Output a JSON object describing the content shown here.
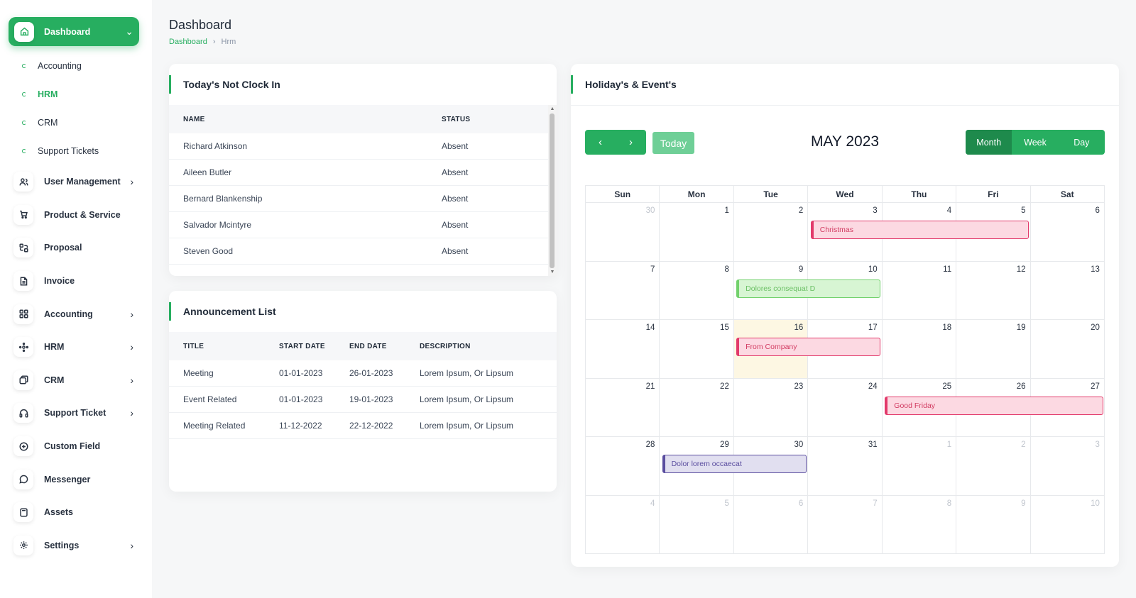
{
  "sidebar": {
    "dashboard_label": "Dashboard",
    "sub_items": [
      {
        "label": "Accounting",
        "active": false
      },
      {
        "label": "HRM",
        "active": true
      },
      {
        "label": "CRM",
        "active": false
      },
      {
        "label": "Support Tickets",
        "active": false
      }
    ],
    "items": [
      {
        "label": "User Management",
        "icon": "users-icon",
        "chevron": true
      },
      {
        "label": "Product & Service",
        "icon": "cart-icon",
        "chevron": false
      },
      {
        "label": "Proposal",
        "icon": "proposal-icon",
        "chevron": false
      },
      {
        "label": "Invoice",
        "icon": "invoice-icon",
        "chevron": false
      },
      {
        "label": "Accounting",
        "icon": "grid-icon",
        "chevron": true
      },
      {
        "label": "HRM",
        "icon": "hrm-icon",
        "chevron": true
      },
      {
        "label": "CRM",
        "icon": "crm-icon",
        "chevron": true
      },
      {
        "label": "Support Ticket",
        "icon": "headphones-icon",
        "chevron": true
      },
      {
        "label": "Custom Field",
        "icon": "plus-circle-icon",
        "chevron": false
      },
      {
        "label": "Messenger",
        "icon": "message-icon",
        "chevron": false
      },
      {
        "label": "Assets",
        "icon": "calculator-icon",
        "chevron": false
      },
      {
        "label": "Settings",
        "icon": "gear-icon",
        "chevron": true
      }
    ]
  },
  "header": {
    "title": "Dashboard",
    "breadcrumb": [
      "Dashboard",
      "Hrm"
    ]
  },
  "clock_in": {
    "title": "Today's Not Clock In",
    "columns": [
      "NAME",
      "STATUS"
    ],
    "rows": [
      {
        "name": "Richard Atkinson",
        "status": "Absent"
      },
      {
        "name": "Aileen Butler",
        "status": "Absent"
      },
      {
        "name": "Bernard Blankenship",
        "status": "Absent"
      },
      {
        "name": "Salvador Mcintyre",
        "status": "Absent"
      },
      {
        "name": "Steven Good",
        "status": "Absent"
      }
    ]
  },
  "announcements": {
    "title": "Announcement List",
    "columns": [
      "TITLE",
      "START DATE",
      "END DATE",
      "DESCRIPTION"
    ],
    "rows": [
      {
        "title": "Meeting",
        "start": "01-01-2023",
        "end": "26-01-2023",
        "description": "Lorem Ipsum, Or Lipsum"
      },
      {
        "title": "Event Related",
        "start": "01-01-2023",
        "end": "19-01-2023",
        "description": "Lorem Ipsum, Or Lipsum"
      },
      {
        "title": "Meeting Related",
        "start": "11-12-2022",
        "end": "22-12-2022",
        "description": "Lorem Ipsum, Or Lipsum"
      }
    ]
  },
  "calendar": {
    "card_title": "Holiday's & Event's",
    "today_label": "Today",
    "month_title": "MAY 2023",
    "views": [
      {
        "label": "Month",
        "active": true
      },
      {
        "label": "Week",
        "active": false
      },
      {
        "label": "Day",
        "active": false
      }
    ],
    "days_of_week": [
      "Sun",
      "Mon",
      "Tue",
      "Wed",
      "Thu",
      "Fri",
      "Sat"
    ],
    "weeks": [
      [
        {
          "d": "30",
          "o": true
        },
        {
          "d": "1"
        },
        {
          "d": "2"
        },
        {
          "d": "3"
        },
        {
          "d": "4"
        },
        {
          "d": "5"
        },
        {
          "d": "6"
        }
      ],
      [
        {
          "d": "7"
        },
        {
          "d": "8"
        },
        {
          "d": "9"
        },
        {
          "d": "10"
        },
        {
          "d": "11"
        },
        {
          "d": "12"
        },
        {
          "d": "13"
        }
      ],
      [
        {
          "d": "14"
        },
        {
          "d": "15"
        },
        {
          "d": "16",
          "today": true
        },
        {
          "d": "17"
        },
        {
          "d": "18"
        },
        {
          "d": "19"
        },
        {
          "d": "20"
        }
      ],
      [
        {
          "d": "21"
        },
        {
          "d": "22"
        },
        {
          "d": "23"
        },
        {
          "d": "24"
        },
        {
          "d": "25"
        },
        {
          "d": "26"
        },
        {
          "d": "27"
        }
      ],
      [
        {
          "d": "28"
        },
        {
          "d": "29"
        },
        {
          "d": "30"
        },
        {
          "d": "31"
        },
        {
          "d": "1",
          "o": true
        },
        {
          "d": "2",
          "o": true
        },
        {
          "d": "3",
          "o": true
        }
      ],
      [
        {
          "d": "4",
          "o": true
        },
        {
          "d": "5",
          "o": true
        },
        {
          "d": "6",
          "o": true
        },
        {
          "d": "7",
          "o": true
        },
        {
          "d": "8",
          "o": true
        },
        {
          "d": "9",
          "o": true
        },
        {
          "d": "10",
          "o": true
        }
      ]
    ],
    "events": [
      {
        "title": "Christmas",
        "week": 0,
        "start_day": 3,
        "span": 3,
        "color": "pink"
      },
      {
        "title": "Dolores consequat D",
        "week": 1,
        "start_day": 2,
        "span": 2,
        "color": "green"
      },
      {
        "title": "From Company",
        "week": 2,
        "start_day": 2,
        "span": 2,
        "color": "pink"
      },
      {
        "title": "Good Friday",
        "week": 3,
        "start_day": 4,
        "span": 3,
        "color": "pink"
      },
      {
        "title": "Dolor lorem occaecat",
        "week": 4,
        "start_day": 1,
        "span": 2,
        "color": "purple"
      }
    ]
  },
  "colors": {
    "accent": "#27ae60",
    "event_pink": "#e23a6b",
    "event_green": "#72d16c",
    "event_purple": "#5a4d9f",
    "today_bg": "#fdf7e3"
  }
}
